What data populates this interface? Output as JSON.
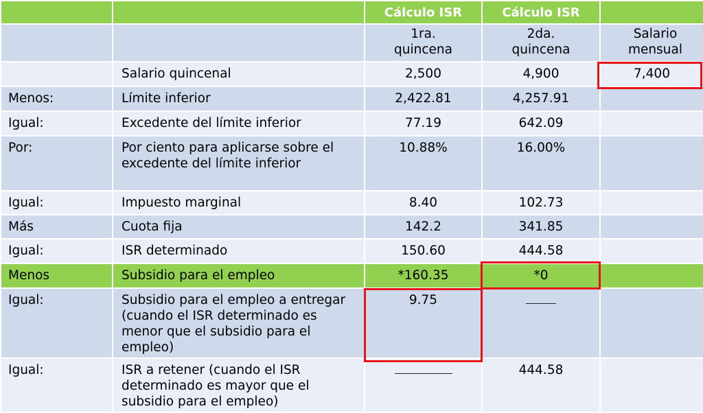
{
  "header": {
    "col2_title": "Cálculo ISR",
    "col3_title": "Cálculo ISR"
  },
  "subheader": {
    "col2": "1ra. quincena",
    "col3": "2da. quincena",
    "col4": "Salario mensual"
  },
  "rows": [
    {
      "label": "",
      "desc": "Salario quincenal",
      "v1": "2,500",
      "v2": "4,900",
      "v3": "7,400"
    },
    {
      "label": "Menos:",
      "desc": "Límite inferior",
      "v1": "2,422.81",
      "v2": "4,257.91",
      "v3": ""
    },
    {
      "label": "Igual:",
      "desc": "Excedente del límite inferior",
      "v1": "77.19",
      "v2": "642.09",
      "v3": ""
    },
    {
      "label": "Por:",
      "desc": "Por ciento para aplicarse sobre el excedente del límite inferior",
      "v1": "10.88%",
      "v2": "16.00%",
      "v3": ""
    },
    {
      "label": "Igual:",
      "desc": "Impuesto marginal",
      "v1": "8.40",
      "v2": "102.73",
      "v3": ""
    },
    {
      "label": "Más",
      "desc": "Cuota fija",
      "v1": "142.2",
      "v2": "341.85",
      "v3": ""
    },
    {
      "label": "Igual:",
      "desc": "ISR determinado",
      "v1": "150.60",
      "v2": "444.58",
      "v3": ""
    },
    {
      "label": "Menos",
      "desc": "Subsidio para el empleo",
      "v1": "*160.35",
      "v2": "*0",
      "v3": ""
    },
    {
      "label": "Igual:",
      "desc": "Subsidio para el empleo a entregar (cuando el ISR determinado es menor que el subsidio para el empleo)",
      "v1": "9.75",
      "v2": "",
      "v3": ""
    },
    {
      "label": "Igual:",
      "desc": "ISR a retener (cuando el ISR determinado es mayor que el subsidio para el empleo)",
      "v1": "",
      "v2": "444.58",
      "v3": ""
    }
  ],
  "colors": {
    "header_green": "#92d050",
    "row_dark": "#cfd9ec",
    "row_light": "#e9eef7",
    "highlight_red": "#e8131a"
  }
}
